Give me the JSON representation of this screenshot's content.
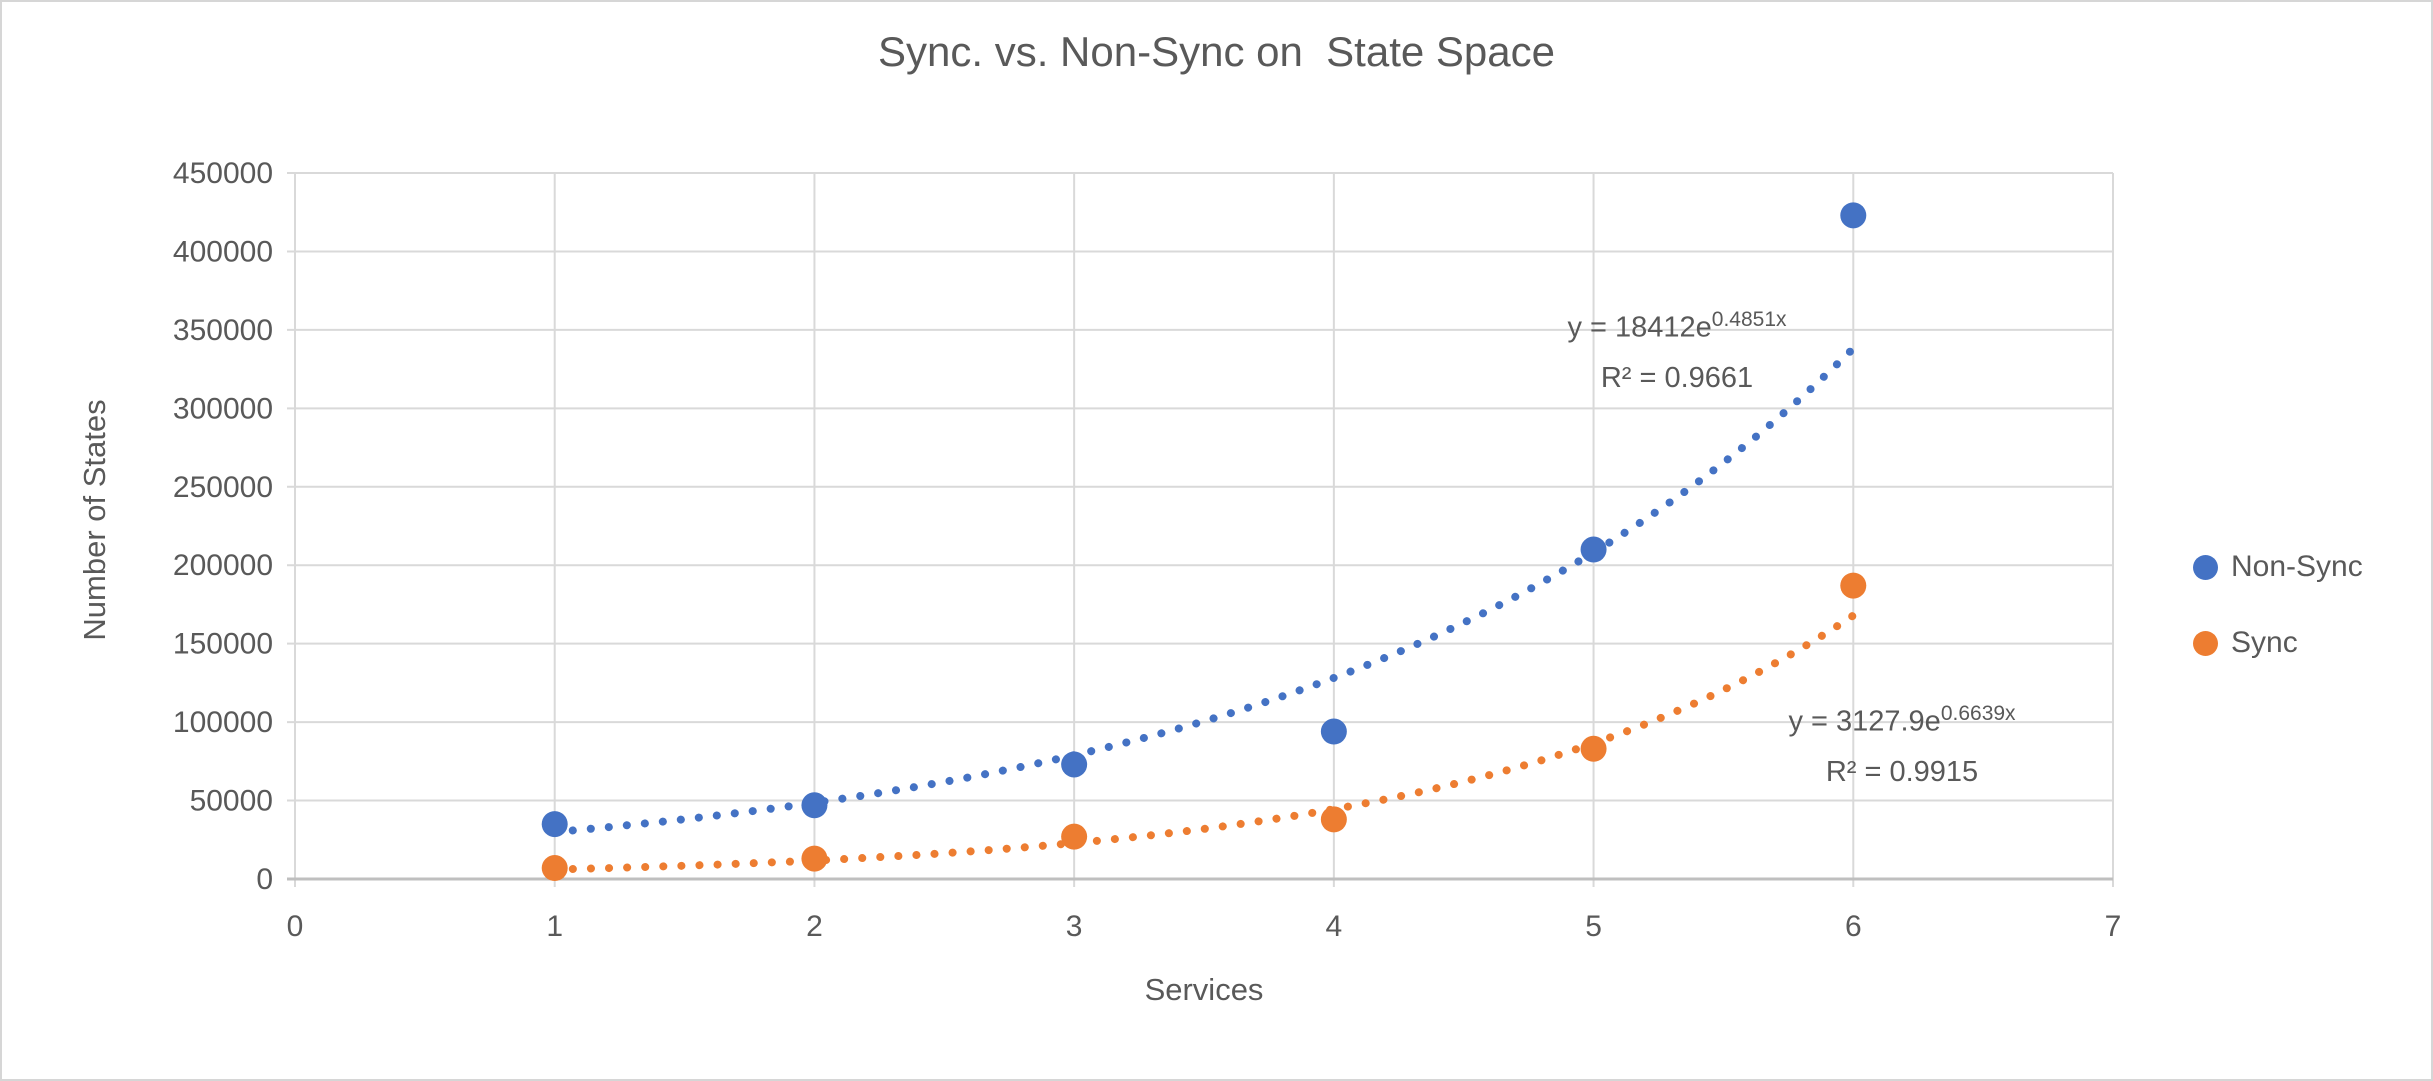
{
  "chart_data": {
    "type": "scatter",
    "title": "Sync. vs. Non-Sync on  State Space",
    "xlabel": "Services",
    "ylabel": "Number of States",
    "xlim": [
      0,
      7
    ],
    "ylim": [
      0,
      450000
    ],
    "x_ticks": [
      0,
      1,
      2,
      3,
      4,
      5,
      6,
      7
    ],
    "y_ticks": [
      0,
      50000,
      100000,
      150000,
      200000,
      250000,
      300000,
      350000,
      400000,
      450000
    ],
    "grid": true,
    "legend_position": "right",
    "marker_style": "filled-circle",
    "colors": {
      "gridline": "#D9D9D9",
      "axis_line": "#BFBFBF",
      "text": "#595959"
    },
    "series": [
      {
        "name": "Non-Sync",
        "color": "#4472C4",
        "x": [
          1,
          2,
          3,
          4,
          5,
          6
        ],
        "y": [
          35000,
          47000,
          73000,
          94000,
          210000,
          423000
        ]
      },
      {
        "name": "Sync",
        "color": "#ED7D31",
        "x": [
          1,
          2,
          3,
          4,
          5,
          6
        ],
        "y": [
          7000,
          13000,
          27000,
          38000,
          83000,
          187000
        ]
      }
    ],
    "trendlines": [
      {
        "series": "Non-Sync",
        "color": "#4472C4",
        "a": 18412,
        "b": 0.4851,
        "x_range": [
          1,
          6
        ],
        "equation_prefix": "y = 18412e",
        "equation_exponent": "0.4851x",
        "r_squared_label": "R² = 0.9661"
      },
      {
        "series": "Sync",
        "color": "#ED7D31",
        "a": 3127.9,
        "b": 0.6639,
        "x_range": [
          1,
          6
        ],
        "equation_prefix": "y = 3127.9e",
        "equation_exponent": "0.6639x",
        "r_squared_label": "R² = 0.9915"
      }
    ]
  }
}
